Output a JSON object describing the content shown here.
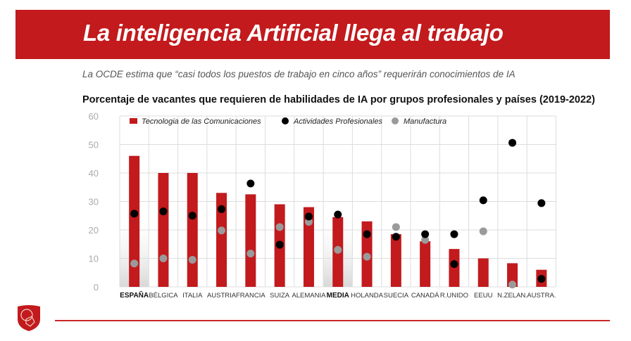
{
  "header": {
    "title": "La inteligencia Artificial llega al trabajo"
  },
  "subtitle": "La OCDE estima que “casi todos los puestos de trabajo en cinco años” requerirán conocimientos de IA",
  "chart_data": {
    "type": "bar",
    "title": "Porcentaje de vacantes que requieren de habilidades de IA por grupos profesionales y países (2019-2022)",
    "categories": [
      "ESPAÑA",
      "BÉLGICA",
      "ITALIA",
      "AUSTRIA",
      "FRANCIA",
      "SUIZA",
      "ALEMANIA",
      "MEDIA",
      "HOLANDA",
      "SUECIA",
      "CANADÁ",
      "R.UNIDO",
      "EEUU",
      "N.ZELAN.",
      "AUSTRA."
    ],
    "highlighted": [
      "ESPAÑA",
      "MEDIA"
    ],
    "ylim": [
      0,
      60
    ],
    "yticks": [
      0,
      10,
      20,
      30,
      40,
      50,
      60
    ],
    "legend_position": "top",
    "series": [
      {
        "name": "Tecnologia de las Comunicaciones",
        "kind": "bar",
        "color": "#c21a1d",
        "values": [
          46,
          40,
          40,
          33,
          32.5,
          29,
          28,
          24.5,
          23,
          18.5,
          16,
          13.3,
          10,
          8.3,
          6
        ]
      },
      {
        "name": "Actividades Profesionales",
        "kind": "dot",
        "color": "#000000",
        "values": [
          25.7,
          26.5,
          25,
          27.3,
          36.3,
          14.8,
          24.7,
          25.4,
          18.5,
          17.6,
          18.5,
          18.5,
          30.4,
          50.6,
          29.4
        ]
      },
      {
        "name": "Manufactura",
        "kind": "dot",
        "color": "#9a9a9a",
        "values": [
          8.2,
          10,
          9.5,
          19.8,
          11.7,
          21,
          22.8,
          13,
          10.6,
          21,
          16.5,
          null,
          19.5,
          0.8,
          null
        ]
      }
    ],
    "extra_black_points": [
      {
        "category": "R.UNIDO",
        "value": 8
      },
      {
        "category": "AUSTRA.",
        "value": 2.8
      }
    ]
  }
}
